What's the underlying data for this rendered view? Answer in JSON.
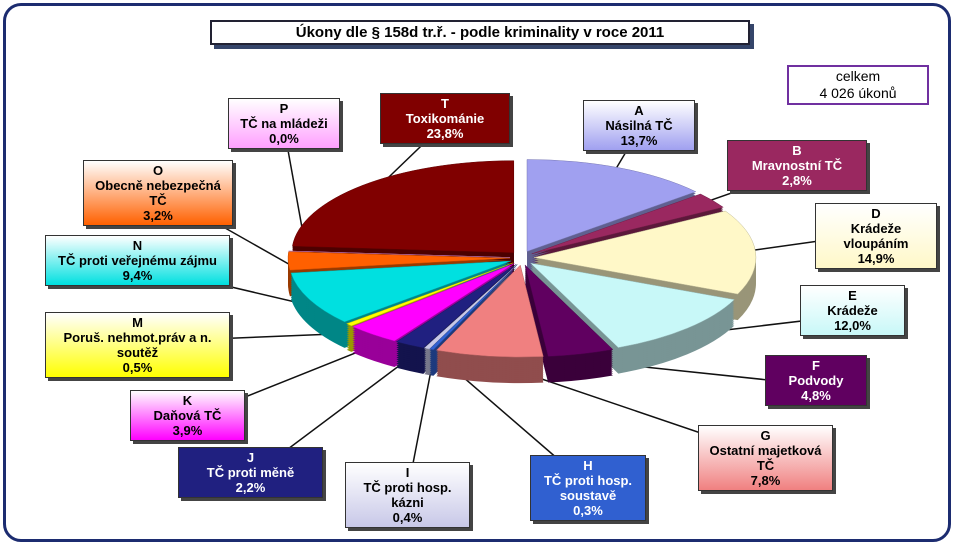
{
  "chart_data": {
    "type": "pie",
    "title": "Úkony dle § 158d tr.ř. - podle kriminality v roce 2011",
    "total_label": [
      "celkem",
      "4 026 úkonů"
    ],
    "letters": [
      "A",
      "B",
      "D",
      "E",
      "F",
      "G",
      "H",
      "I",
      "J",
      "K",
      "M",
      "N",
      "O",
      "P",
      "T"
    ],
    "categories": [
      "Násilná TČ",
      "Mravnostní TČ",
      "Krádeže vloupáním",
      "Krádeže",
      "Podvody",
      "Ostatní majetková TČ",
      "TČ proti hosp. soustavě",
      "TČ proti hosp. kázni",
      "TČ proti měně",
      "Daňová TČ",
      "Poruš. nehmot.práv a n. soutěž",
      "TČ proti veřejnému zájmu",
      "Obecně nebezpečná TČ",
      "TČ na mládeži",
      "Toxikománie"
    ],
    "values": [
      13.7,
      2.8,
      14.9,
      12.0,
      4.8,
      7.8,
      0.3,
      0.4,
      2.2,
      3.9,
      0.5,
      9.4,
      3.2,
      0.0,
      23.8
    ],
    "value_labels": [
      "13,7%",
      "2,8%",
      "14,9%",
      "12,0%",
      "4,8%",
      "7,8%",
      "0,3%",
      "0,4%",
      "2,2%",
      "3,9%",
      "0,5%",
      "9,4%",
      "3,2%",
      "0,0%",
      "23,8%"
    ],
    "colors": [
      "#a0a0f0",
      "#9a2860",
      "#fff8c8",
      "#c8f8f8",
      "#600060",
      "#f08080",
      "#3060d0",
      "#c8c8e8",
      "#202080",
      "#ff00ff",
      "#ffff00",
      "#00e0e0",
      "#ff6000",
      "#ffa0ff",
      "#800000"
    ]
  }
}
